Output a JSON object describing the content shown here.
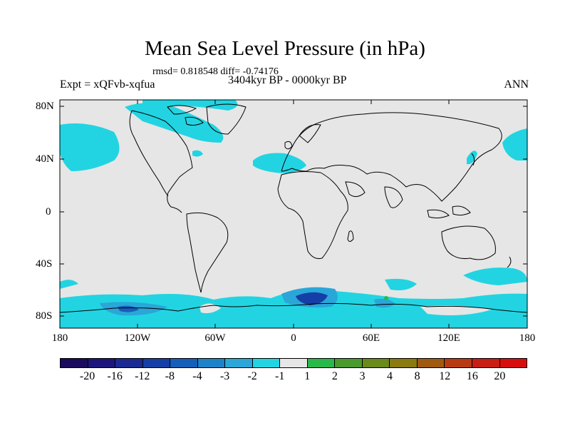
{
  "title": "Mean Sea Level Pressure (in hPa)",
  "stats": "rmsd= 0.818548 diff= -0.74176",
  "left_label": "Expt = xQFvb-xqfua",
  "center_label": "3404kyr BP - 0000kyr BP",
  "right_label": "ANN",
  "y_axis_labels": [
    "80N",
    "40N",
    "0",
    "40S",
    "80S"
  ],
  "x_axis_labels": [
    "180",
    "120W",
    "60W",
    "0",
    "60E",
    "120E",
    "180"
  ],
  "colorbar": {
    "labels": [
      "-20",
      "-16",
      "-12",
      "-8",
      "-4",
      "-3",
      "-2",
      "-1",
      "1",
      "2",
      "3",
      "4",
      "8",
      "12",
      "16",
      "20"
    ],
    "colors": [
      "#1a0b5e",
      "#1c167c",
      "#1a2a92",
      "#153fa6",
      "#155fb8",
      "#1e82c8",
      "#2aa6d8",
      "#22d4e2",
      "#e6e6e6",
      "#2ab84a",
      "#4a9a2e",
      "#6a8a1a",
      "#8a7a10",
      "#a05a10",
      "#b83a12",
      "#c81e14",
      "#d80e0e"
    ]
  },
  "colors": {
    "ocean_background": "#e6e6e6",
    "anomaly_light": "#22d4e2",
    "anomaly_medium": "#2aa6d8",
    "anomaly_strong": "#155fb8",
    "anomaly_positive": "#2ab84a",
    "coastline": "#000000"
  }
}
